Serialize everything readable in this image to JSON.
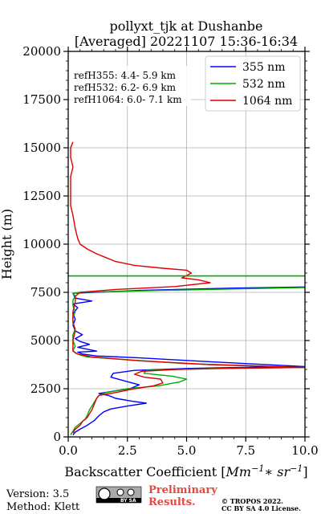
{
  "chart_data": {
    "type": "line",
    "title_line1": "pollyxt_tjk at Dushanbe",
    "title_line2": "[Averaged] 20221107 15:36-16:34",
    "xlabel": "Backscatter Coefficient [",
    "xlabel_unit": "Mm",
    "xlabel_unit_sup": "−1",
    "xlabel_mid": "∗ sr",
    "xlabel_mid_sup": "−1",
    "xlabel_end": "]",
    "ylabel": "Height (m)",
    "xlim": [
      0,
      10
    ],
    "ylim": [
      0,
      20000
    ],
    "x_ticks": [
      0,
      2.5,
      5,
      7.5,
      10
    ],
    "x_tick_labels": [
      "0.0",
      "2.5",
      "5.0",
      "7.5",
      "10.0"
    ],
    "y_ticks": [
      0,
      2500,
      5000,
      7500,
      10000,
      12500,
      15000,
      17500,
      20000
    ],
    "y_tick_labels": [
      "0",
      "2500",
      "5000",
      "7500",
      "10000",
      "12500",
      "15000",
      "17500",
      "20000"
    ],
    "grid": true,
    "legend_position": "top-right",
    "reference_heights": [
      "refH355:  4.4- 5.9 km",
      "refH532:  6.2- 6.9 km",
      "refH1064:  6.0- 7.1 km"
    ],
    "series": [
      {
        "name": "355 nm",
        "color": "#0000ff",
        "points": [
          [
            0.2,
            100
          ],
          [
            0.3,
            250
          ],
          [
            0.5,
            400
          ],
          [
            0.8,
            600
          ],
          [
            1.1,
            850
          ],
          [
            1.3,
            1100
          ],
          [
            1.5,
            1300
          ],
          [
            1.8,
            1450
          ],
          [
            2.5,
            1600
          ],
          [
            3.3,
            1750
          ],
          [
            2.7,
            1850
          ],
          [
            2.0,
            2000
          ],
          [
            1.7,
            2150
          ],
          [
            1.3,
            2250
          ],
          [
            1.8,
            2350
          ],
          [
            2.6,
            2500
          ],
          [
            3.0,
            2700
          ],
          [
            2.4,
            2900
          ],
          [
            1.8,
            3100
          ],
          [
            1.9,
            3300
          ],
          [
            2.8,
            3450
          ],
          [
            5.0,
            3550
          ],
          [
            8.0,
            3620
          ],
          [
            10.0,
            3650
          ],
          [
            6.0,
            3900
          ],
          [
            3.0,
            4100
          ],
          [
            1.2,
            4200
          ],
          [
            0.6,
            4300
          ],
          [
            0.4,
            4400
          ],
          [
            1.2,
            4450
          ],
          [
            0.8,
            4550
          ],
          [
            0.4,
            4650
          ],
          [
            0.9,
            4800
          ],
          [
            0.5,
            4950
          ],
          [
            0.3,
            5100
          ],
          [
            0.6,
            5300
          ],
          [
            0.3,
            5500
          ],
          [
            0.2,
            5800
          ],
          [
            0.3,
            6100
          ],
          [
            0.2,
            6400
          ],
          [
            0.4,
            6700
          ],
          [
            0.2,
            6900
          ],
          [
            1.0,
            7050
          ],
          [
            0.3,
            7200
          ],
          [
            0.2,
            7450
          ],
          [
            3.0,
            7600
          ],
          [
            7.0,
            7720
          ],
          [
            10.0,
            7780
          ]
        ]
      },
      {
        "name": "532 nm",
        "color": "#00aa00",
        "points": [
          [
            0.1,
            100
          ],
          [
            0.2,
            300
          ],
          [
            0.3,
            500
          ],
          [
            0.5,
            700
          ],
          [
            0.7,
            900
          ],
          [
            0.8,
            1100
          ],
          [
            0.9,
            1400
          ],
          [
            1.0,
            1600
          ],
          [
            1.1,
            1800
          ],
          [
            1.2,
            2000
          ],
          [
            1.3,
            2150
          ],
          [
            1.6,
            2300
          ],
          [
            2.5,
            2500
          ],
          [
            3.8,
            2650
          ],
          [
            4.7,
            2850
          ],
          [
            5.0,
            3000
          ],
          [
            4.4,
            3150
          ],
          [
            3.2,
            3300
          ],
          [
            3.3,
            3450
          ],
          [
            6.0,
            3550
          ],
          [
            10.0,
            3600
          ],
          [
            5.0,
            3800
          ],
          [
            2.5,
            4000
          ],
          [
            0.8,
            4150
          ],
          [
            0.5,
            4250
          ],
          [
            0.3,
            4350
          ],
          [
            0.2,
            4500
          ],
          [
            0.3,
            4700
          ],
          [
            0.2,
            5000
          ],
          [
            0.2,
            5300
          ],
          [
            0.3,
            5600
          ],
          [
            0.2,
            5900
          ],
          [
            0.2,
            6200
          ],
          [
            0.3,
            6500
          ],
          [
            0.2,
            6800
          ],
          [
            0.2,
            7100
          ],
          [
            0.3,
            7300
          ],
          [
            0.2,
            7450
          ],
          [
            0.5,
            7500
          ],
          [
            4.0,
            7600
          ],
          [
            8.0,
            7700
          ],
          [
            10.0,
            7750
          ]
        ]
      },
      {
        "name": "1064 nm",
        "color": "#dd0000",
        "points": [
          [
            0.2,
            200
          ],
          [
            0.3,
            400
          ],
          [
            0.5,
            600
          ],
          [
            0.6,
            800
          ],
          [
            0.8,
            1000
          ],
          [
            0.9,
            1200
          ],
          [
            1.0,
            1400
          ],
          [
            1.1,
            1700
          ],
          [
            1.2,
            2000
          ],
          [
            1.3,
            2150
          ],
          [
            2.0,
            2300
          ],
          [
            2.8,
            2500
          ],
          [
            3.6,
            2650
          ],
          [
            4.0,
            2800
          ],
          [
            3.9,
            3000
          ],
          [
            3.2,
            3100
          ],
          [
            2.8,
            3250
          ],
          [
            3.1,
            3400
          ],
          [
            4.5,
            3500
          ],
          [
            7.0,
            3560
          ],
          [
            10.0,
            3600
          ],
          [
            6.0,
            3750
          ],
          [
            3.0,
            3950
          ],
          [
            1.0,
            4150
          ],
          [
            0.4,
            4300
          ],
          [
            0.2,
            4450
          ],
          [
            0.2,
            5000
          ],
          [
            0.3,
            5500
          ],
          [
            0.2,
            6000
          ],
          [
            0.2,
            6500
          ],
          [
            0.3,
            7000
          ],
          [
            0.3,
            7300
          ],
          [
            0.5,
            7500
          ],
          [
            2.0,
            7650
          ],
          [
            4.5,
            7800
          ],
          [
            6.0,
            8000
          ],
          [
            5.5,
            8150
          ],
          [
            4.8,
            8250
          ],
          [
            5.2,
            8500
          ],
          [
            5.0,
            8650
          ],
          [
            4.0,
            8750
          ],
          [
            2.8,
            8900
          ],
          [
            2.0,
            9100
          ],
          [
            1.6,
            9300
          ],
          [
            1.2,
            9500
          ],
          [
            0.8,
            9750
          ],
          [
            0.5,
            10000
          ],
          [
            0.4,
            10300
          ],
          [
            0.3,
            10800
          ],
          [
            0.2,
            11500
          ],
          [
            0.1,
            12000
          ],
          [
            0.1,
            12500
          ],
          [
            0.1,
            13000
          ],
          [
            0.1,
            13500
          ],
          [
            0.2,
            14000
          ],
          [
            0.1,
            14500
          ],
          [
            0.1,
            15000
          ],
          [
            0.2,
            15300
          ]
        ]
      }
    ],
    "horizontal_lines": [
      {
        "y": 8350,
        "color": "#00aa00"
      }
    ]
  },
  "footer": {
    "version": "Version: 3.5",
    "method": "Method: Klett",
    "preliminary_line1": "Preliminary",
    "preliminary_line2": "Results.",
    "copyright_line1": "© TROPOS 2022.",
    "copyright_line2": "CC BY SA 4.0 License.",
    "badge_text": "BY  SA"
  }
}
